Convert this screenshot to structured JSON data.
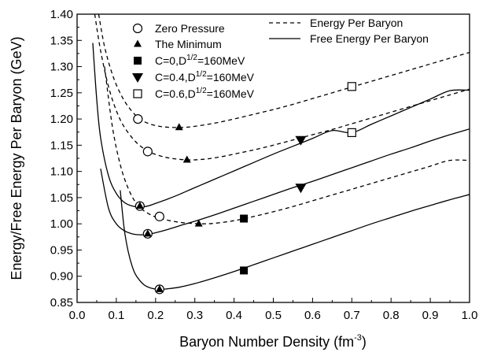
{
  "chart_data": {
    "type": "line",
    "xlabel": "Baryon Number Density (fm",
    "xlabel_sup": "-3",
    "xlabel_tail": ")",
    "ylabel": "Energy/Free Energy Per Baryon (GeV)",
    "xlim": [
      0.0,
      1.0
    ],
    "ylim": [
      0.85,
      1.4
    ],
    "xticks": [
      "0.0",
      "0.1",
      "0.2",
      "0.3",
      "0.4",
      "0.5",
      "0.6",
      "0.7",
      "0.8",
      "0.9",
      "1.0"
    ],
    "yticks": [
      "0.85",
      "0.90",
      "0.95",
      "1.00",
      "1.05",
      "1.10",
      "1.15",
      "1.20",
      "1.25",
      "1.30",
      "1.35",
      "1.40"
    ],
    "grid": false,
    "legend_position": "top",
    "legend": {
      "markers": [
        {
          "symbol": "open-circle",
          "text": "Zero Pressure"
        },
        {
          "symbol": "filled-triangle-up",
          "text": "The Minimum"
        },
        {
          "symbol": "filled-square",
          "text": "C=0,D",
          "sup": "1/2",
          "tail": "=160MeV"
        },
        {
          "symbol": "filled-triangle-down",
          "text": "C=0.4,D",
          "sup": "1/2",
          "tail": "=160MeV"
        },
        {
          "symbol": "open-square",
          "text": "C=0.6,D",
          "sup": "1/2",
          "tail": "=160MeV"
        }
      ],
      "lines": [
        {
          "style": "dashed",
          "text": "Energy Per Baryon"
        },
        {
          "style": "solid",
          "text": "Free Energy Per Baryon"
        }
      ]
    },
    "series": [
      {
        "style": "dashed",
        "case": "C=0.6",
        "x": [
          0.055,
          0.07,
          0.09,
          0.11,
          0.13,
          0.155,
          0.18,
          0.21,
          0.24,
          0.27,
          0.3,
          0.35,
          0.4,
          0.45,
          0.5,
          0.55,
          0.6,
          0.65,
          0.7,
          0.75,
          0.8,
          0.85,
          0.9,
          0.95,
          1.0
        ],
        "y": [
          1.4,
          1.338,
          1.285,
          1.249,
          1.224,
          1.203,
          1.192,
          1.186,
          1.184,
          1.184,
          1.186,
          1.192,
          1.2,
          1.209,
          1.218,
          1.228,
          1.239,
          1.25,
          1.261,
          1.272,
          1.283,
          1.294,
          1.305,
          1.316,
          1.327
        ]
      },
      {
        "style": "dashed",
        "case": "C=0.4",
        "x": [
          0.045,
          0.06,
          0.08,
          0.1,
          0.12,
          0.15,
          0.18,
          0.21,
          0.24,
          0.28,
          0.32,
          0.36,
          0.4,
          0.45,
          0.5,
          0.55,
          0.6,
          0.65,
          0.7,
          0.75,
          0.8,
          0.85,
          0.9,
          0.95,
          1.0
        ],
        "y": [
          1.4,
          1.33,
          1.262,
          1.216,
          1.185,
          1.156,
          1.139,
          1.13,
          1.125,
          1.122,
          1.123,
          1.127,
          1.133,
          1.141,
          1.15,
          1.16,
          1.17,
          1.18,
          1.191,
          1.202,
          1.213,
          1.224,
          1.235,
          1.246,
          1.257
        ]
      },
      {
        "style": "dashed",
        "case": "C=0",
        "x": [
          0.07,
          0.09,
          0.11,
          0.13,
          0.15,
          0.17,
          0.2,
          0.23,
          0.26,
          0.29,
          0.32,
          0.35,
          0.4,
          0.45,
          0.5,
          0.55,
          0.6,
          0.65,
          0.7,
          0.75,
          0.8,
          0.85,
          0.9,
          0.95,
          1.0
        ],
        "y": [
          1.3,
          1.185,
          1.113,
          1.068,
          1.04,
          1.025,
          1.013,
          1.007,
          1.003,
          1.001,
          1.0,
          1.001,
          1.006,
          1.014,
          1.023,
          1.033,
          1.044,
          1.055,
          1.066,
          1.077,
          1.088,
          1.099,
          1.11,
          1.121,
          1.121
        ]
      },
      {
        "style": "solid",
        "case": "C=0.6",
        "x": [
          0.04,
          0.05,
          0.06,
          0.08,
          0.1,
          0.12,
          0.14,
          0.16,
          0.18,
          0.2,
          0.23,
          0.26,
          0.3,
          0.35,
          0.4,
          0.45,
          0.5,
          0.55,
          0.6,
          0.65,
          0.7,
          0.75,
          0.8,
          0.85,
          0.9,
          0.95,
          1.0
        ],
        "y": [
          1.345,
          1.238,
          1.164,
          1.092,
          1.058,
          1.041,
          1.034,
          1.032,
          1.034,
          1.039,
          1.047,
          1.056,
          1.069,
          1.085,
          1.101,
          1.117,
          1.133,
          1.148,
          1.163,
          1.178,
          1.174,
          1.19,
          1.206,
          1.222,
          1.238,
          1.254,
          1.255
        ]
      },
      {
        "style": "solid",
        "case": "C=0.4",
        "x": [
          0.06,
          0.08,
          0.1,
          0.12,
          0.14,
          0.16,
          0.18,
          0.2,
          0.23,
          0.26,
          0.3,
          0.35,
          0.4,
          0.45,
          0.5,
          0.55,
          0.6,
          0.65,
          0.7,
          0.75,
          0.8,
          0.85,
          0.9,
          0.95,
          1.0
        ],
        "y": [
          1.105,
          1.03,
          1.0,
          0.987,
          0.981,
          0.979,
          0.98,
          0.983,
          0.989,
          0.996,
          1.005,
          1.017,
          1.03,
          1.043,
          1.056,
          1.069,
          1.081,
          1.094,
          1.107,
          1.12,
          1.133,
          1.145,
          1.158,
          1.17,
          1.181
        ]
      },
      {
        "style": "solid",
        "case": "C=0",
        "x": [
          0.11,
          0.12,
          0.13,
          0.14,
          0.15,
          0.17,
          0.19,
          0.21,
          0.23,
          0.26,
          0.3,
          0.35,
          0.4,
          0.45,
          0.5,
          0.55,
          0.6,
          0.65,
          0.7,
          0.75,
          0.8,
          0.85,
          0.9,
          0.95,
          1.0
        ],
        "y": [
          1.064,
          0.991,
          0.948,
          0.92,
          0.902,
          0.884,
          0.877,
          0.875,
          0.876,
          0.879,
          0.886,
          0.897,
          0.909,
          0.922,
          0.935,
          0.948,
          0.961,
          0.974,
          0.987,
          1.0,
          1.012,
          1.024,
          1.035,
          1.046,
          1.056
        ]
      }
    ],
    "markers": [
      {
        "symbol": "open-circle",
        "x": 0.155,
        "y": 1.2
      },
      {
        "symbol": "open-circle",
        "x": 0.18,
        "y": 1.138
      },
      {
        "symbol": "open-circle",
        "x": 0.16,
        "y": 1.034
      },
      {
        "symbol": "open-circle",
        "x": 0.18,
        "y": 0.981
      },
      {
        "symbol": "open-circle",
        "x": 0.21,
        "y": 1.014
      },
      {
        "symbol": "open-circle",
        "x": 0.21,
        "y": 0.875
      },
      {
        "symbol": "filled-triangle-up",
        "x": 0.26,
        "y": 1.184
      },
      {
        "symbol": "filled-triangle-up",
        "x": 0.28,
        "y": 1.122
      },
      {
        "symbol": "filled-triangle-up",
        "x": 0.31,
        "y": 1.0
      },
      {
        "symbol": "filled-triangle-up",
        "x": 0.16,
        "y": 1.034
      },
      {
        "symbol": "filled-triangle-up",
        "x": 0.18,
        "y": 0.981
      },
      {
        "symbol": "filled-triangle-up",
        "x": 0.21,
        "y": 0.875
      },
      {
        "symbol": "filled-square",
        "x": 0.425,
        "y": 1.01
      },
      {
        "symbol": "filled-square",
        "x": 0.425,
        "y": 0.911
      },
      {
        "symbol": "filled-triangle-down",
        "x": 0.57,
        "y": 1.16
      },
      {
        "symbol": "filled-triangle-down",
        "x": 0.57,
        "y": 1.069
      },
      {
        "symbol": "open-square",
        "x": 0.7,
        "y": 1.262
      },
      {
        "symbol": "open-square",
        "x": 0.7,
        "y": 1.174
      }
    ]
  }
}
